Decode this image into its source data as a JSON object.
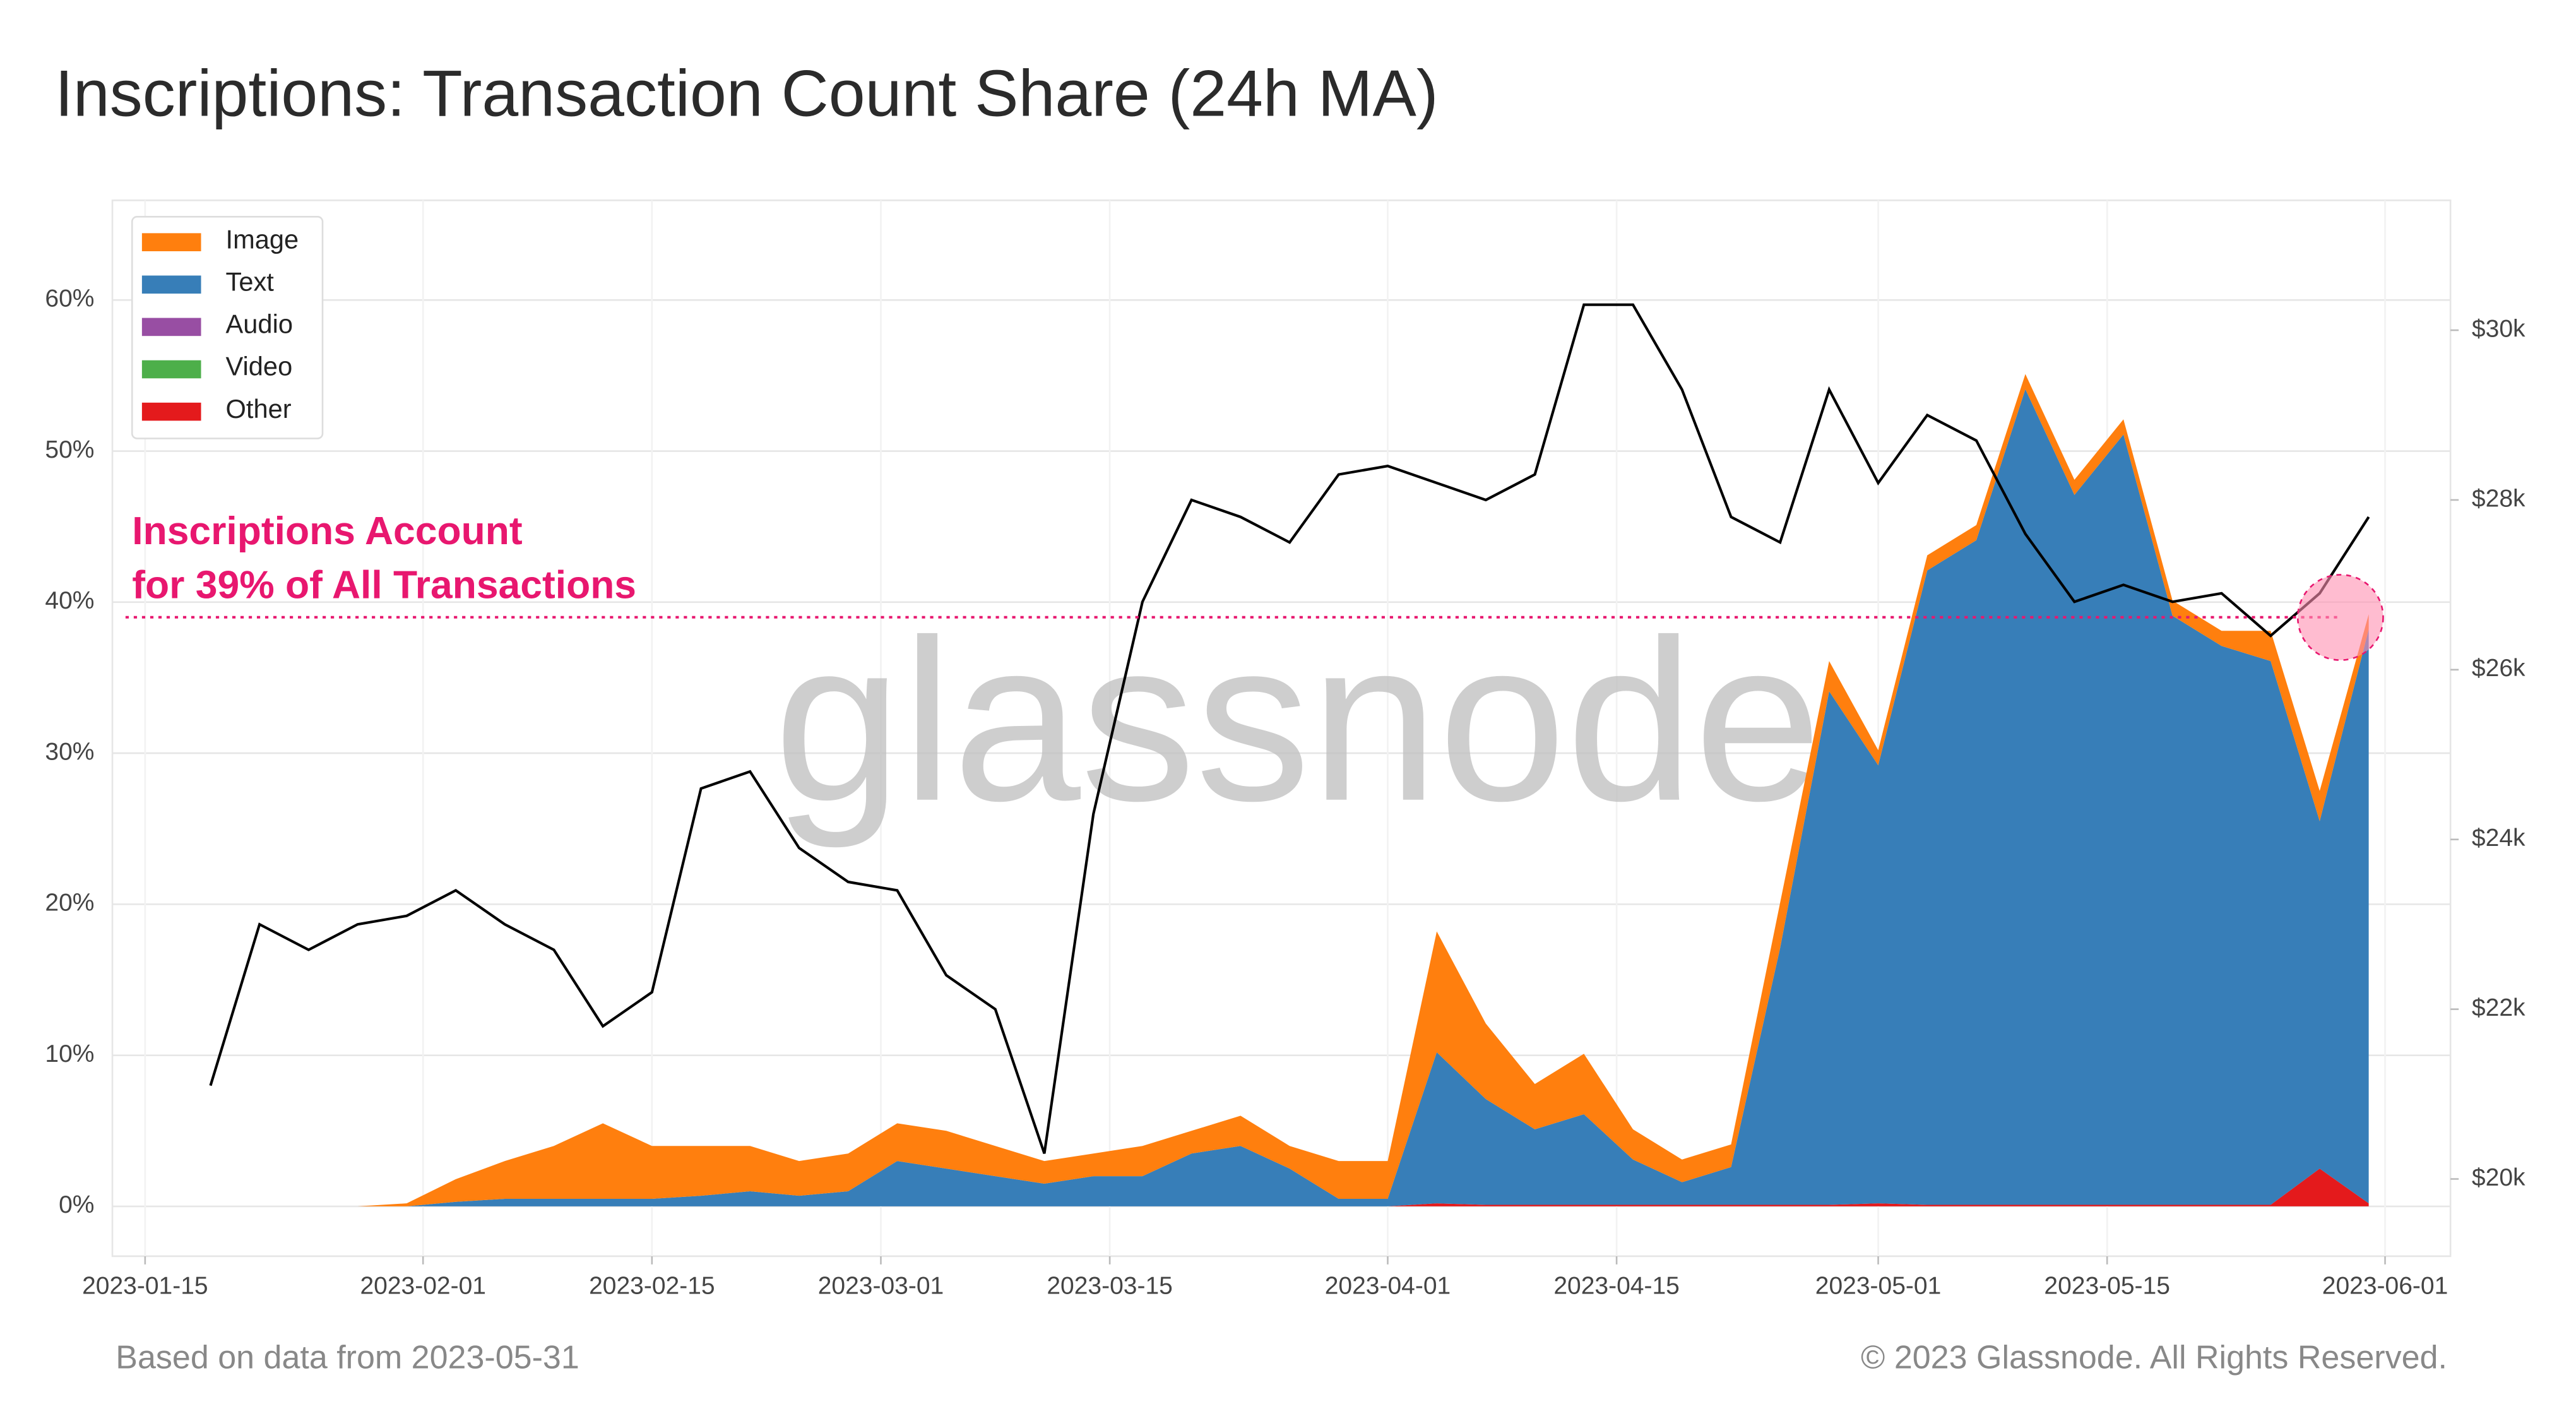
{
  "chart_data": {
    "type": "area",
    "title": "Inscriptions: Transaction Count Share (24h MA)",
    "x": [
      "2023-01-19",
      "2023-01-22",
      "2023-01-25",
      "2023-01-28",
      "2023-01-31",
      "2023-02-03",
      "2023-02-06",
      "2023-02-09",
      "2023-02-12",
      "2023-02-15",
      "2023-02-18",
      "2023-02-21",
      "2023-02-24",
      "2023-02-27",
      "2023-03-02",
      "2023-03-05",
      "2023-03-08",
      "2023-03-11",
      "2023-03-14",
      "2023-03-17",
      "2023-03-20",
      "2023-03-23",
      "2023-03-26",
      "2023-03-29",
      "2023-04-01",
      "2023-04-04",
      "2023-04-07",
      "2023-04-10",
      "2023-04-13",
      "2023-04-16",
      "2023-04-19",
      "2023-04-22",
      "2023-04-25",
      "2023-04-28",
      "2023-05-01",
      "2023-05-04",
      "2023-05-07",
      "2023-05-10",
      "2023-05-13",
      "2023-05-16",
      "2023-05-19",
      "2023-05-22",
      "2023-05-25",
      "2023-05-28",
      "2023-05-31"
    ],
    "series": [
      {
        "name": "Image",
        "color": "#ff7f0e",
        "values": [
          0,
          0,
          0,
          0,
          0.2,
          1.5,
          2.5,
          3.5,
          5,
          3.5,
          3.3,
          3,
          2.3,
          2.5,
          2.5,
          2.5,
          2,
          1.5,
          1.5,
          2,
          1.5,
          2,
          1.5,
          2.5,
          2.5,
          8,
          5,
          3,
          4,
          2,
          1.5,
          1.5,
          3,
          2,
          1,
          1,
          1,
          1,
          1,
          1,
          1,
          1,
          2,
          2,
          1
        ]
      },
      {
        "name": "Text",
        "color": "#377eb8",
        "values": [
          0,
          0,
          0,
          0,
          0,
          0.3,
          0.5,
          0.5,
          0.5,
          0.5,
          0.7,
          1,
          0.7,
          1,
          3,
          2.5,
          2,
          1.5,
          2,
          2,
          3.5,
          4,
          2.5,
          0.5,
          0.5,
          10,
          7,
          5,
          6,
          3,
          1.5,
          2.5,
          17,
          34,
          29,
          42,
          44,
          54,
          47,
          51,
          39,
          37,
          36,
          23,
          38
        ]
      },
      {
        "name": "Audio",
        "color": "#984ea3",
        "values": [
          0,
          0,
          0,
          0,
          0,
          0,
          0,
          0,
          0,
          0,
          0,
          0,
          0,
          0,
          0,
          0,
          0,
          0,
          0,
          0,
          0,
          0,
          0,
          0,
          0,
          0,
          0,
          0,
          0,
          0,
          0,
          0,
          0,
          0,
          0,
          0,
          0,
          0,
          0,
          0,
          0,
          0,
          0,
          0,
          0
        ]
      },
      {
        "name": "Video",
        "color": "#4daf4a",
        "values": [
          0,
          0,
          0,
          0,
          0,
          0,
          0,
          0,
          0,
          0,
          0,
          0,
          0,
          0,
          0,
          0,
          0,
          0,
          0,
          0,
          0,
          0,
          0,
          0,
          0,
          0,
          0,
          0,
          0,
          0,
          0,
          0,
          0,
          0,
          0,
          0,
          0,
          0,
          0,
          0,
          0,
          0,
          0,
          0,
          0
        ]
      },
      {
        "name": "Other",
        "color": "#e41a1c",
        "values": [
          0,
          0,
          0,
          0,
          0,
          0,
          0,
          0,
          0,
          0,
          0,
          0,
          0,
          0,
          0,
          0,
          0,
          0,
          0,
          0,
          0,
          0,
          0,
          0,
          0,
          0.2,
          0.1,
          0.1,
          0.1,
          0.1,
          0.1,
          0.1,
          0.1,
          0.1,
          0.2,
          0.1,
          0.1,
          0.1,
          0.1,
          0.1,
          0.1,
          0.1,
          0.1,
          2.5,
          0.2
        ]
      },
      {
        "type": "line",
        "axis": "y2",
        "color": "#000000",
        "values": [
          21100,
          23000,
          22700,
          23000,
          23100,
          23400,
          23000,
          22700,
          21800,
          22200,
          24600,
          24800,
          23900,
          23500,
          23400,
          22400,
          22000,
          20300,
          24300,
          26800,
          28000,
          27800,
          27500,
          28300,
          28400,
          28200,
          28000,
          28300,
          30300,
          30300,
          29300,
          27800,
          27500,
          29300,
          28200,
          29000,
          28700,
          27600,
          26800,
          27000,
          26800,
          26900,
          26400,
          26900,
          27800
        ]
      }
    ],
    "xlim": [
      "2023-01-13",
      "2023-06-05"
    ],
    "xticks": [
      "2023-01-15",
      "2023-02-01",
      "2023-02-15",
      "2023-03-01",
      "2023-03-15",
      "2023-04-01",
      "2023-04-15",
      "2023-05-01",
      "2023-05-15",
      "2023-06-01"
    ],
    "ylim": [
      -3.3,
      66.6
    ],
    "yticks": [
      {
        "value": 0,
        "label": "0%"
      },
      {
        "value": 10,
        "label": "10%"
      },
      {
        "value": 20,
        "label": "20%"
      },
      {
        "value": 30,
        "label": "30%"
      },
      {
        "value": 40,
        "label": "40%"
      },
      {
        "value": 50,
        "label": "50%"
      },
      {
        "value": 60,
        "label": "60%"
      }
    ],
    "y2lim": [
      19090,
      31530
    ],
    "y2ticks": [
      {
        "value": 20000,
        "label": "$20k"
      },
      {
        "value": 22000,
        "label": "$22k"
      },
      {
        "value": 24000,
        "label": "$24k"
      },
      {
        "value": 26000,
        "label": "$26k"
      },
      {
        "value": 28000,
        "label": "$28k"
      },
      {
        "value": 30000,
        "label": "$30k"
      }
    ],
    "grid": true,
    "legend": "upper left",
    "annotation": {
      "text": [
        "Inscriptions Account",
        "for 39% of All Transactions"
      ],
      "value": 39,
      "color": "#e8176f"
    },
    "watermark": "glassnode",
    "footnote_left": "Based on data from 2023-05-31",
    "footnote_right": "© 2023 Glassnode. All Rights Reserved."
  }
}
